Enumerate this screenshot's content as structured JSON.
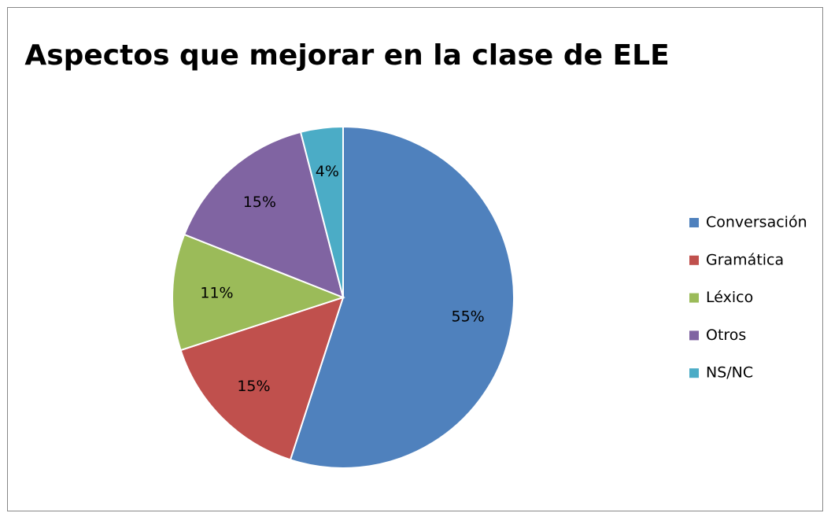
{
  "chart_data": {
    "type": "pie",
    "title": "Aspectos que mejorar en la clase de ELE",
    "categories": [
      "Conversación",
      "Gramática",
      "Léxico",
      "Otros",
      "NS/NC"
    ],
    "values": [
      55,
      15,
      11,
      15,
      4
    ],
    "value_labels": [
      "55%",
      "15%",
      "11%",
      "15%",
      "4%"
    ],
    "colors": [
      "#4f81bd",
      "#c0504d",
      "#9bbb59",
      "#8064a2",
      "#4bacc6"
    ],
    "legend": "right"
  }
}
